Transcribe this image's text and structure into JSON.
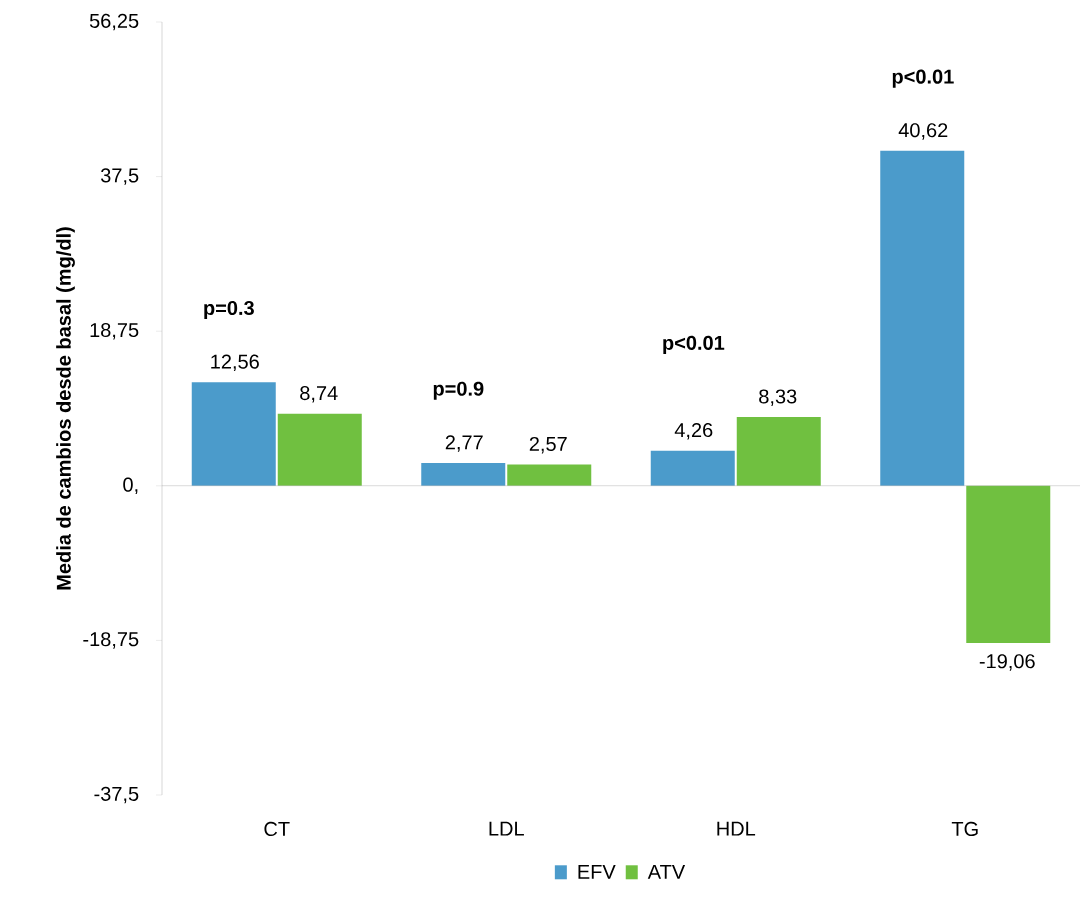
{
  "chart_data": {
    "type": "bar",
    "ylabel": "Media de cambios desde basal (mg/dl)",
    "categories": [
      "CT",
      "LDL",
      "HDL",
      "TG"
    ],
    "series": [
      {
        "name": "EFV",
        "color": "#4b9bcb",
        "values": [
          12.56,
          2.77,
          4.26,
          40.62
        ],
        "value_labels": [
          "12,56",
          "2,77",
          "4,26",
          "40,62"
        ]
      },
      {
        "name": "ATV",
        "color": "#70c040",
        "values": [
          8.74,
          2.57,
          8.33,
          -19.06
        ],
        "value_labels": [
          "8,74",
          "2,57",
          "8,33",
          "-19,06"
        ]
      }
    ],
    "ylim": [
      -37.5,
      56.25
    ],
    "yticks": [
      {
        "value": -37.5,
        "label": "-37,5"
      },
      {
        "value": -18.75,
        "label": "-18,75"
      },
      {
        "value": 0,
        "label": "0,"
      },
      {
        "value": 18.75,
        "label": "18,75"
      },
      {
        "value": 37.5,
        "label": "37,5"
      },
      {
        "value": 56.25,
        "label": "56,25"
      }
    ],
    "annotations": [
      "p=0.3",
      "p=0.9",
      "p<0.01",
      "p<0.01"
    ],
    "legend": "bottom"
  }
}
